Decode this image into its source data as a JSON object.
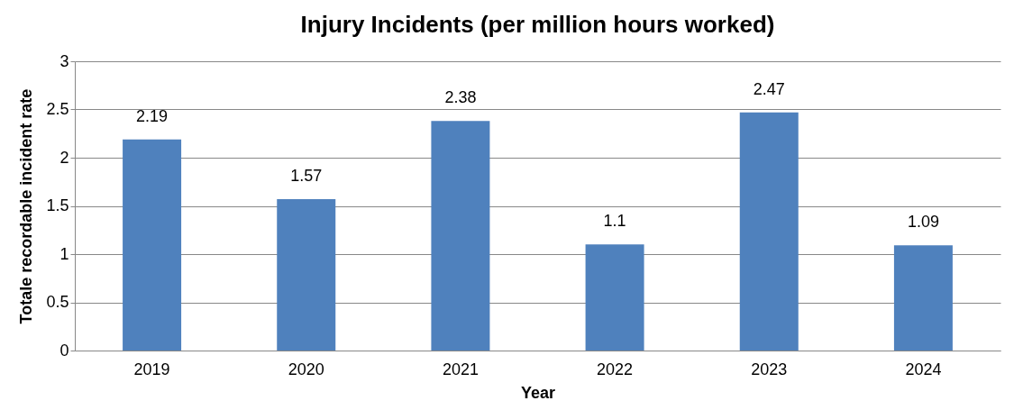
{
  "chart_data": {
    "type": "bar",
    "title": "Injury Incidents (per million hours worked)",
    "xlabel": "Year",
    "ylabel": "Totale recordable incident rate",
    "categories": [
      "2019",
      "2020",
      "2021",
      "2022",
      "2023",
      "2024"
    ],
    "values": [
      2.19,
      1.57,
      2.38,
      1.1,
      2.47,
      1.09
    ],
    "color": "#4f81bd",
    "ylim": [
      0,
      3
    ],
    "yticks": [
      0,
      0.5,
      1,
      1.5,
      2,
      2.5,
      3
    ],
    "grid": "y",
    "data_labels": true
  }
}
